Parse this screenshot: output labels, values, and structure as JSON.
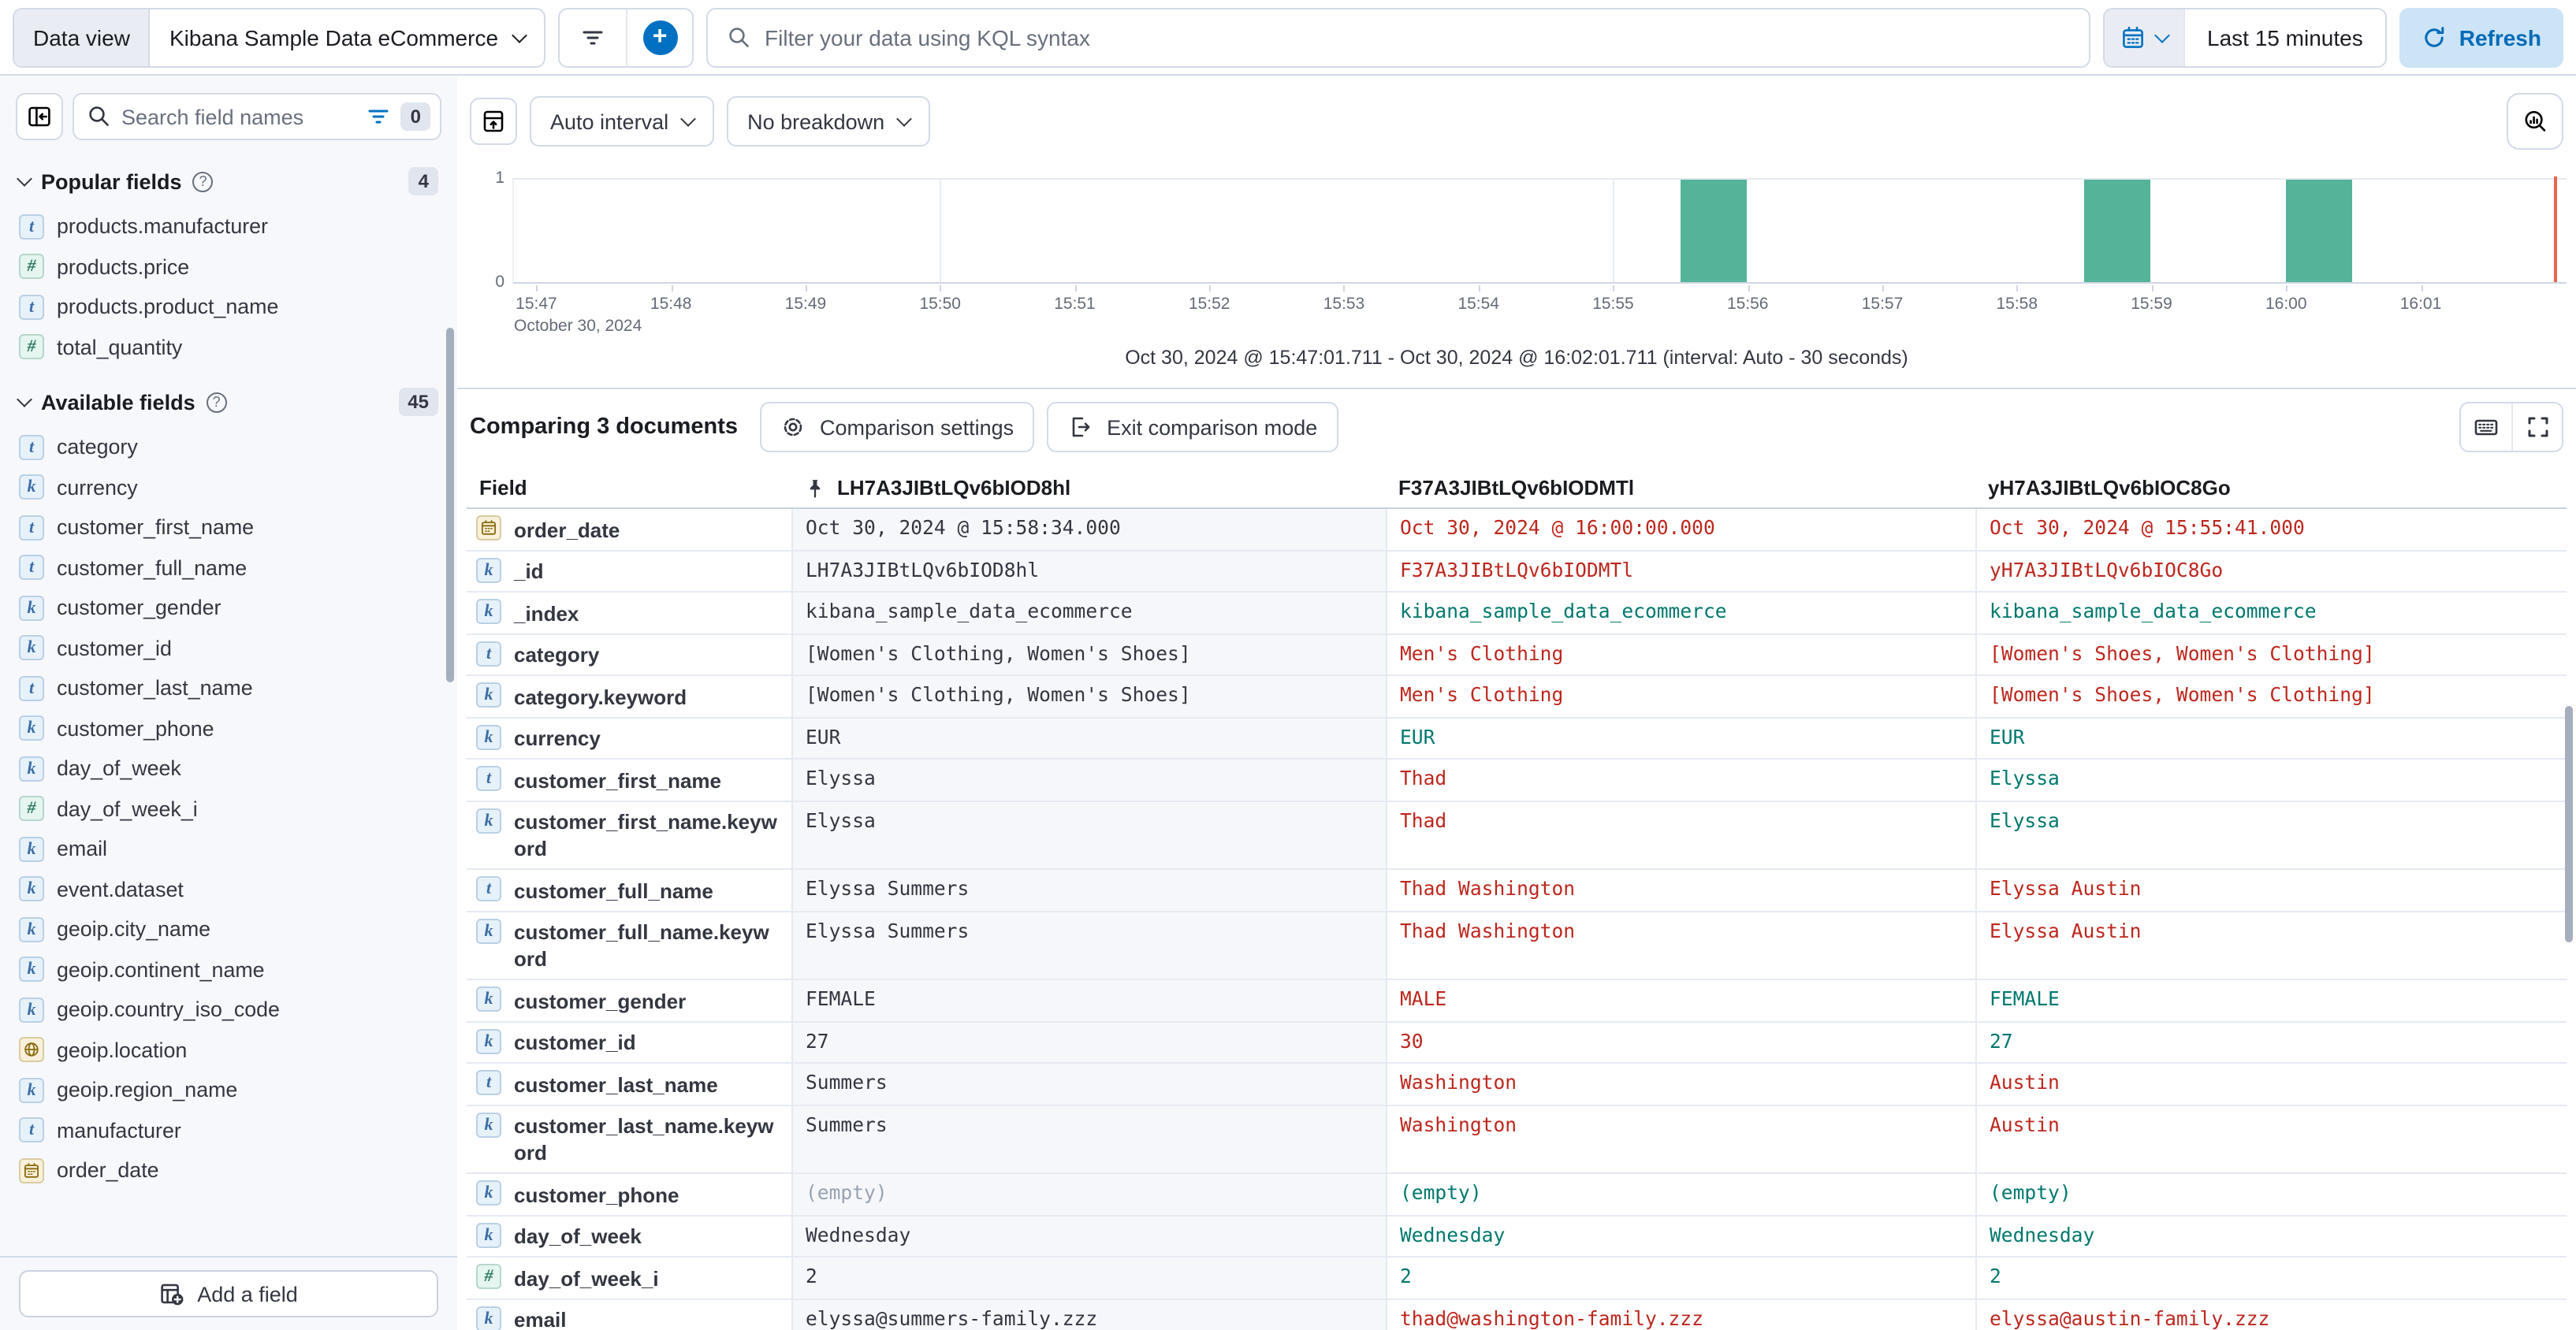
{
  "top_bar": {
    "data_view_label": "Data view",
    "data_view_value": "Kibana Sample Data eCommerce",
    "kql_placeholder": "Filter your data using KQL syntax",
    "time_range": "Last 15 minutes",
    "refresh_label": "Refresh"
  },
  "sidebar": {
    "search_placeholder": "Search field names",
    "filter_count": "0",
    "popular": {
      "label": "Popular fields",
      "count": "4",
      "items": [
        {
          "name": "products.manufacturer",
          "type": "text"
        },
        {
          "name": "products.price",
          "type": "number"
        },
        {
          "name": "products.product_name",
          "type": "text"
        },
        {
          "name": "total_quantity",
          "type": "number"
        }
      ]
    },
    "available": {
      "label": "Available fields",
      "count": "45",
      "items": [
        {
          "name": "category",
          "type": "text"
        },
        {
          "name": "currency",
          "type": "keyword"
        },
        {
          "name": "customer_first_name",
          "type": "text"
        },
        {
          "name": "customer_full_name",
          "type": "text"
        },
        {
          "name": "customer_gender",
          "type": "keyword"
        },
        {
          "name": "customer_id",
          "type": "keyword"
        },
        {
          "name": "customer_last_name",
          "type": "text"
        },
        {
          "name": "customer_phone",
          "type": "keyword"
        },
        {
          "name": "day_of_week",
          "type": "keyword"
        },
        {
          "name": "day_of_week_i",
          "type": "number"
        },
        {
          "name": "email",
          "type": "keyword"
        },
        {
          "name": "event.dataset",
          "type": "keyword"
        },
        {
          "name": "geoip.city_name",
          "type": "keyword"
        },
        {
          "name": "geoip.continent_name",
          "type": "keyword"
        },
        {
          "name": "geoip.country_iso_code",
          "type": "keyword"
        },
        {
          "name": "geoip.location",
          "type": "geo"
        },
        {
          "name": "geoip.region_name",
          "type": "keyword"
        },
        {
          "name": "manufacturer",
          "type": "text"
        },
        {
          "name": "order_date",
          "type": "date"
        }
      ]
    },
    "add_field_label": "Add a field"
  },
  "chart": {
    "interval_label": "Auto interval",
    "breakdown_label": "No breakdown",
    "caption": "Oct 30, 2024 @ 15:47:01.711 - Oct 30, 2024 @ 16:02:01.711 (interval: Auto - 30 seconds)",
    "chart_data": {
      "type": "bar",
      "title": "Document count over time",
      "x_domain": [
        "15:46:50",
        "16:02:05"
      ],
      "x_date_label": "October 30, 2024",
      "ticks": [
        "15:47",
        "15:48",
        "15:49",
        "15:50",
        "15:51",
        "15:52",
        "15:53",
        "15:54",
        "15:55",
        "15:56",
        "15:57",
        "15:58",
        "15:59",
        "16:00",
        "16:01"
      ],
      "grid_times": [
        "15:50:00",
        "15:55:00",
        "16:00:00"
      ],
      "bars": [
        {
          "time": "15:55:30",
          "count": 1
        },
        {
          "time": "15:58:30",
          "count": 1
        },
        {
          "time": "16:00:00",
          "count": 1
        }
      ],
      "interval_seconds": 30,
      "ylim": [
        0,
        1
      ],
      "yticks": [
        0,
        1
      ],
      "now_marker": "16:02:00",
      "bar_color": "#54B399",
      "now_line_color": "#E7664C"
    }
  },
  "compare": {
    "title": "Comparing 3 documents",
    "settings_label": "Comparison settings",
    "exit_label": "Exit comparison mode",
    "field_column_label": "Field",
    "columns": [
      "LH7A3JIBtLQv6bIOD8hl",
      "F37A3JIBtLQv6bIODMTl",
      "yH7A3JIBtLQv6bIOC8Go"
    ],
    "pinned_column": "LH7A3JIBtLQv6bIOD8hl",
    "diff_color": "#BD271E",
    "match_color": "#00786D",
    "rows": [
      {
        "field": "order_date",
        "type": "date",
        "values": [
          {
            "text": "Oct 30, 2024 @ 15:58:34.000",
            "tone": "base"
          },
          {
            "text": "Oct 30, 2024 @ 16:00:00.000",
            "tone": "diff"
          },
          {
            "text": "Oct 30, 2024 @ 15:55:41.000",
            "tone": "diff"
          }
        ]
      },
      {
        "field": "_id",
        "type": "keyword",
        "values": [
          {
            "text": "LH7A3JIBtLQv6bIOD8hl",
            "tone": "base"
          },
          {
            "text": "F37A3JIBtLQv6bIODMTl",
            "tone": "diff"
          },
          {
            "text": "yH7A3JIBtLQv6bIOC8Go",
            "tone": "diff"
          }
        ]
      },
      {
        "field": "_index",
        "type": "keyword",
        "values": [
          {
            "text": "kibana_sample_data_ecommerce",
            "tone": "base"
          },
          {
            "text": "kibana_sample_data_ecommerce",
            "tone": "match"
          },
          {
            "text": "kibana_sample_data_ecommerce",
            "tone": "match"
          }
        ]
      },
      {
        "field": "category",
        "type": "text",
        "values": [
          {
            "text": "[Women's Clothing, Women's Shoes]",
            "tone": "base"
          },
          {
            "text": "Men's Clothing",
            "tone": "diff"
          },
          {
            "text": "[Women's Shoes, Women's Clothing]",
            "tone": "diff"
          }
        ]
      },
      {
        "field": "category.keyword",
        "type": "keyword",
        "values": [
          {
            "text": "[Women's Clothing, Women's Shoes]",
            "tone": "base"
          },
          {
            "text": "Men's Clothing",
            "tone": "diff"
          },
          {
            "text": "[Women's Shoes, Women's Clothing]",
            "tone": "diff"
          }
        ]
      },
      {
        "field": "currency",
        "type": "keyword",
        "values": [
          {
            "text": "EUR",
            "tone": "base"
          },
          {
            "text": "EUR",
            "tone": "match"
          },
          {
            "text": "EUR",
            "tone": "match"
          }
        ]
      },
      {
        "field": "customer_first_name",
        "type": "text",
        "values": [
          {
            "text": "Elyssa",
            "tone": "base"
          },
          {
            "text": "Thad",
            "tone": "diff"
          },
          {
            "text": "Elyssa",
            "tone": "match"
          }
        ]
      },
      {
        "field": "customer_first_name.keyword",
        "type": "keyword",
        "values": [
          {
            "text": "Elyssa",
            "tone": "base"
          },
          {
            "text": "Thad",
            "tone": "diff"
          },
          {
            "text": "Elyssa",
            "tone": "match"
          }
        ]
      },
      {
        "field": "customer_full_name",
        "type": "text",
        "values": [
          {
            "text": "Elyssa Summers",
            "tone": "base"
          },
          {
            "text": "Thad Washington",
            "tone": "diff"
          },
          {
            "text": "Elyssa Austin",
            "tone": "diff"
          }
        ]
      },
      {
        "field": "customer_full_name.keyword",
        "type": "keyword",
        "values": [
          {
            "text": "Elyssa Summers",
            "tone": "base"
          },
          {
            "text": "Thad Washington",
            "tone": "diff"
          },
          {
            "text": "Elyssa Austin",
            "tone": "diff"
          }
        ]
      },
      {
        "field": "customer_gender",
        "type": "keyword",
        "values": [
          {
            "text": "FEMALE",
            "tone": "base"
          },
          {
            "text": "MALE",
            "tone": "diff"
          },
          {
            "text": "FEMALE",
            "tone": "match"
          }
        ]
      },
      {
        "field": "customer_id",
        "type": "keyword",
        "values": [
          {
            "text": "27",
            "tone": "base"
          },
          {
            "text": "30",
            "tone": "diff"
          },
          {
            "text": "27",
            "tone": "match"
          }
        ]
      },
      {
        "field": "customer_last_name",
        "type": "text",
        "values": [
          {
            "text": "Summers",
            "tone": "base"
          },
          {
            "text": "Washington",
            "tone": "diff"
          },
          {
            "text": "Austin",
            "tone": "diff"
          }
        ]
      },
      {
        "field": "customer_last_name.keyword",
        "type": "keyword",
        "values": [
          {
            "text": "Summers",
            "tone": "base"
          },
          {
            "text": "Washington",
            "tone": "diff"
          },
          {
            "text": "Austin",
            "tone": "diff"
          }
        ]
      },
      {
        "field": "customer_phone",
        "type": "keyword",
        "values": [
          {
            "text": "(empty)",
            "tone": "muted"
          },
          {
            "text": "(empty)",
            "tone": "match"
          },
          {
            "text": "(empty)",
            "tone": "match"
          }
        ]
      },
      {
        "field": "day_of_week",
        "type": "keyword",
        "values": [
          {
            "text": "Wednesday",
            "tone": "base"
          },
          {
            "text": "Wednesday",
            "tone": "match"
          },
          {
            "text": "Wednesday",
            "tone": "match"
          }
        ]
      },
      {
        "field": "day_of_week_i",
        "type": "number",
        "values": [
          {
            "text": "2",
            "tone": "base"
          },
          {
            "text": "2",
            "tone": "match"
          },
          {
            "text": "2",
            "tone": "match"
          }
        ]
      },
      {
        "field": "email",
        "type": "keyword",
        "values": [
          {
            "text": "elyssa@summers-family.zzz",
            "tone": "base"
          },
          {
            "text": "thad@washington-family.zzz",
            "tone": "diff"
          },
          {
            "text": "elyssa@austin-family.zzz",
            "tone": "diff"
          }
        ]
      }
    ]
  }
}
